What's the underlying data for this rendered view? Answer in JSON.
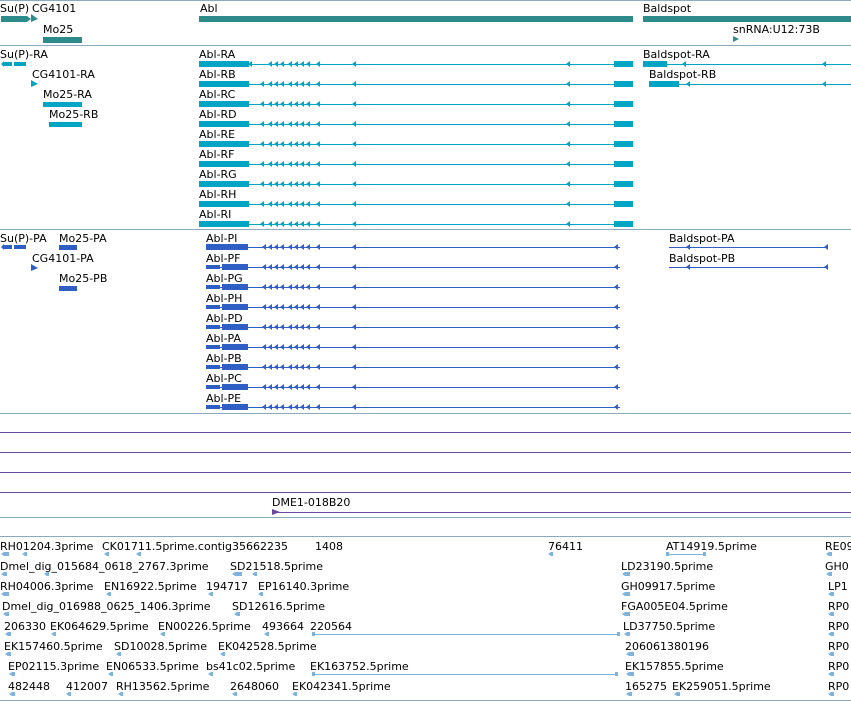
{
  "tracks": {
    "genes": {
      "color": "#2e8b8b",
      "labels": {
        "sup": "Su(P)",
        "cg4101": "CG4101",
        "mo25": "Mo25",
        "abl": "Abl",
        "baldspot": "Baldspot",
        "snrna": "snRNA:U12:73B"
      }
    },
    "transcripts": {
      "color": "#00a5c4",
      "sup_ra": "Su(P)-RA",
      "cg4101_ra": "CG4101-RA",
      "mo25_ra": "Mo25-RA",
      "mo25_rb": "Mo25-RB",
      "abl": [
        "Abl-RA",
        "Abl-RB",
        "Abl-RC",
        "Abl-RD",
        "Abl-RE",
        "Abl-RF",
        "Abl-RG",
        "Abl-RH",
        "Abl-RI"
      ],
      "baldspot_ra": "Baldspot-RA",
      "baldspot_rb": "Baldspot-RB"
    },
    "proteins": {
      "color": "#2f5fc4",
      "sup_pa": "Su(P)-PA",
      "mo25_pa": "Mo25-PA",
      "cg4101_pa": "CG4101-PA",
      "mo25_pb": "Mo25-PB",
      "abl": [
        "Abl-PI",
        "Abl-PF",
        "Abl-PG",
        "Abl-PH",
        "Abl-PD",
        "Abl-PA",
        "Abl-PB",
        "Abl-PC",
        "Abl-PE"
      ],
      "baldspot_pa": "Baldspot-PA",
      "baldspot_pb": "Baldspot-PB"
    },
    "clones": {
      "color": "#6a4aa0",
      "label": "DME1-018B20"
    },
    "ests": {
      "color": "#7fb2dd",
      "rows": [
        [
          "RH01204.3prime",
          "CK01711.5prime.contig35662235",
          "1408",
          "76411",
          "AT14919.5prime",
          "RE09"
        ],
        [
          "Dmel_dig_015684_0618_2767.3prime",
          "SD21518.5prime",
          "LD23190.5prime",
          "GH0"
        ],
        [
          "RH04006.3prime",
          "EN16922.5prime",
          "194717",
          "EP16140.3prime",
          "GH09917.5prime",
          "LP1"
        ],
        [
          "Dmel_dig_016988_0625_1406.3prime",
          "SD12616.5prime",
          "FGA005E04.5prime",
          "RP0"
        ],
        [
          "206330",
          "EK064629.5prime",
          "EN00226.5prime",
          "493664",
          "220564",
          "LD37750.5prime",
          "RP0"
        ],
        [
          "EK157460.5prime",
          "SD10028.5prime",
          "EK042528.5prime",
          "206061380196",
          "RP0"
        ],
        [
          "EP02115.3prime",
          "EN06533.5prime",
          "bs41c02.5prime",
          "EK163752.5prime",
          "EK157855.5prime",
          "RP0"
        ],
        [
          "482448",
          "412007",
          "RH13562.5prime",
          "2648060",
          "EK042341.5prime",
          "165275",
          "EK259051.5prime",
          "RP0"
        ]
      ]
    }
  }
}
